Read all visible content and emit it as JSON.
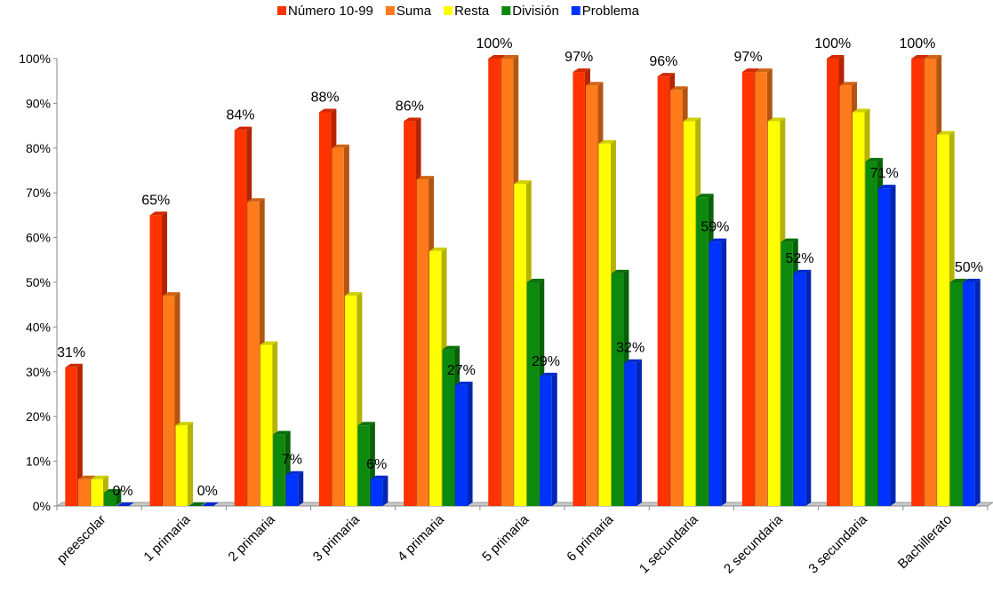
{
  "chart_data": {
    "type": "bar",
    "categories": [
      "preescolar",
      "1 primaria",
      "2 primaria",
      "3 primaria",
      "4 primaria",
      "5 primaria",
      "6 primaria",
      "1 secundaria",
      "2 secundaria",
      "3 secundaria",
      "Bachillerato"
    ],
    "series": [
      {
        "name": "Número 10-99",
        "color": "#ff3300",
        "values": [
          31,
          65,
          84,
          88,
          86,
          100,
          97,
          96,
          97,
          100,
          100
        ]
      },
      {
        "name": "Suma",
        "color": "#ff7a1a",
        "values": [
          6,
          47,
          68,
          80,
          73,
          100,
          94,
          93,
          97,
          94,
          100
        ]
      },
      {
        "name": "Resta",
        "color": "#ffff00",
        "values": [
          6,
          18,
          36,
          47,
          57,
          72,
          81,
          86,
          86,
          88,
          83
        ]
      },
      {
        "name": "División",
        "color": "#0d8a0d",
        "values": [
          3,
          0,
          16,
          18,
          35,
          50,
          52,
          69,
          59,
          77,
          50
        ]
      },
      {
        "name": "Problema",
        "color": "#0033ff",
        "values": [
          0,
          0,
          7,
          6,
          27,
          29,
          32,
          59,
          52,
          71,
          50
        ]
      }
    ],
    "data_labels": [
      {
        "series": 0,
        "index": 0,
        "text": "31%"
      },
      {
        "series": 4,
        "index": 0,
        "text": "0%"
      },
      {
        "series": 0,
        "index": 1,
        "text": "65%"
      },
      {
        "series": 4,
        "index": 1,
        "text": "0%"
      },
      {
        "series": 0,
        "index": 2,
        "text": "84%"
      },
      {
        "series": 4,
        "index": 2,
        "text": "7%"
      },
      {
        "series": 0,
        "index": 3,
        "text": "88%"
      },
      {
        "series": 4,
        "index": 3,
        "text": "6%"
      },
      {
        "series": 0,
        "index": 4,
        "text": "86%"
      },
      {
        "series": 4,
        "index": 4,
        "text": "27%"
      },
      {
        "series": 0,
        "index": 5,
        "text": "100%"
      },
      {
        "series": 4,
        "index": 5,
        "text": "29%"
      },
      {
        "series": 0,
        "index": 6,
        "text": "97%"
      },
      {
        "series": 4,
        "index": 6,
        "text": "32%"
      },
      {
        "series": 0,
        "index": 7,
        "text": "96%"
      },
      {
        "series": 4,
        "index": 7,
        "text": "59%"
      },
      {
        "series": 0,
        "index": 8,
        "text": "97%"
      },
      {
        "series": 4,
        "index": 8,
        "text": "52%"
      },
      {
        "series": 0,
        "index": 9,
        "text": "100%"
      },
      {
        "series": 4,
        "index": 9,
        "text": "71%"
      },
      {
        "series": 0,
        "index": 10,
        "text": "100%"
      },
      {
        "series": 4,
        "index": 10,
        "text": "50%"
      }
    ],
    "ylim": [
      0,
      100
    ],
    "yticks": [
      "0%",
      "10%",
      "20%",
      "30%",
      "40%",
      "50%",
      "60%",
      "70%",
      "80%",
      "90%",
      "100%"
    ],
    "legend_position": "top",
    "grid": false,
    "style": "3d-bar"
  }
}
